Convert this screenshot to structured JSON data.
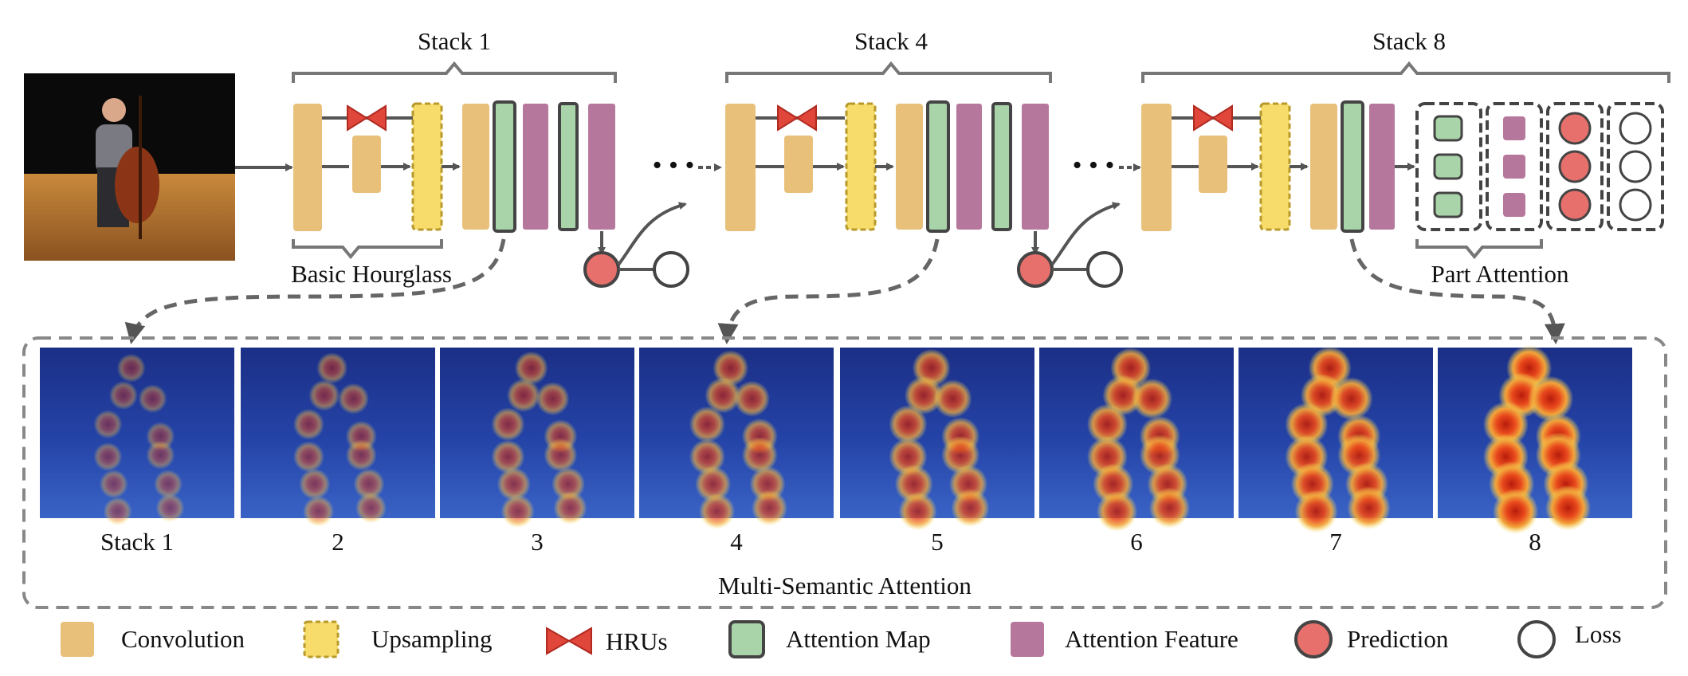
{
  "stack_titles": [
    "Stack 1",
    "Stack 4",
    "Stack 8"
  ],
  "basic_hourglass_label": "Basic Hourglass",
  "part_attention_label": "Part Attention",
  "ellipsis": "• • •",
  "heatmap_labels": [
    "Stack 1",
    "2",
    "3",
    "4",
    "5",
    "6",
    "7",
    "8"
  ],
  "multi_semantic_label": "Multi-Semantic  Attention",
  "legend": {
    "convolution": "Convolution",
    "upsampling": "Upsampling",
    "hrus": "HRUs",
    "attention_map": "Attention Map",
    "attention_feature": "Attention Feature",
    "prediction": "Prediction",
    "loss": "Loss"
  },
  "colors": {
    "convolution": "#e8c07a",
    "upsampling": "#f7dc6b",
    "hru": "#e0463a",
    "attention_map": "#a9d3a8",
    "attention_feature": "#b6779c",
    "prediction": "#e8706c",
    "arrow": "#555555",
    "heat_bg": "#1e3a8a"
  }
}
